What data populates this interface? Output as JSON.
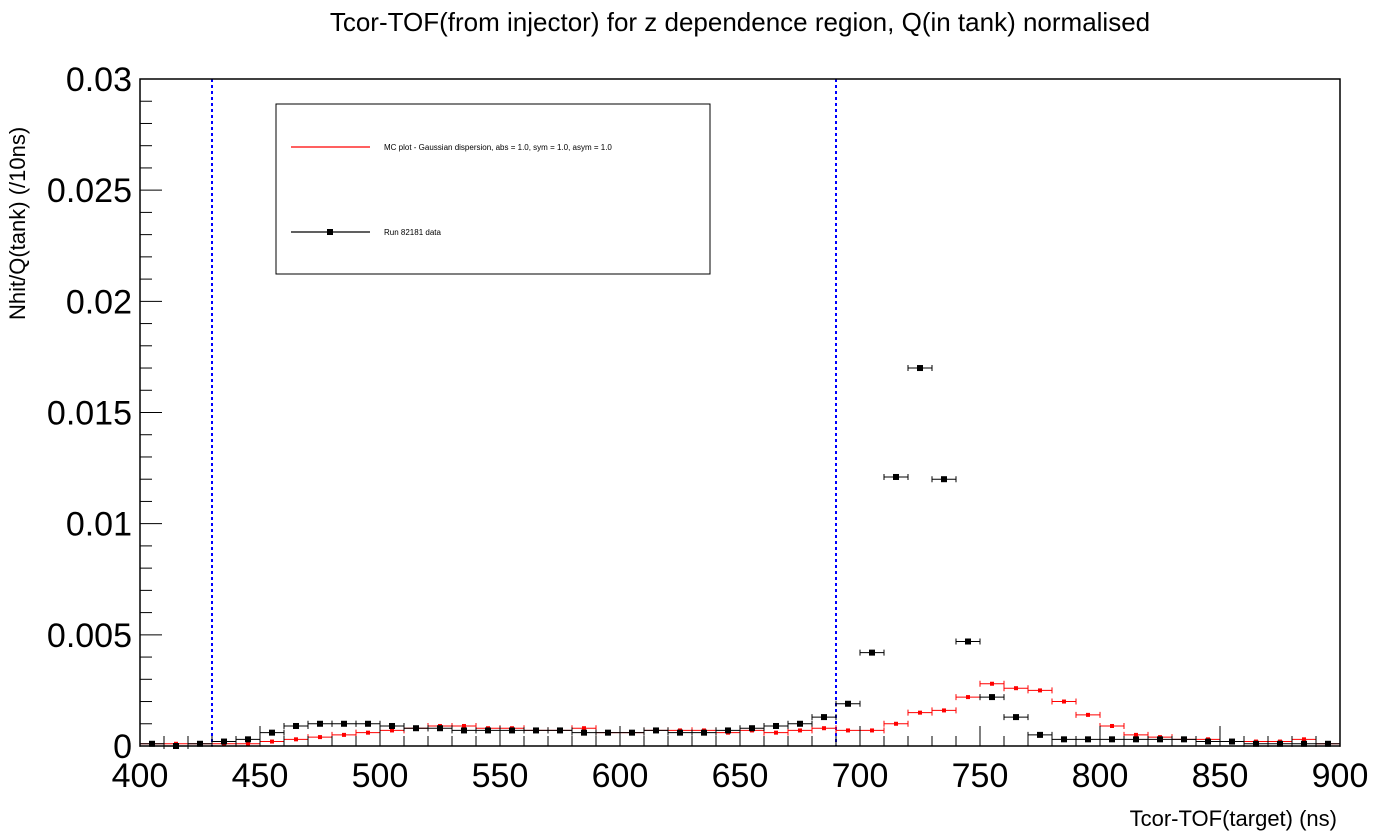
{
  "chart_data": {
    "type": "scatter",
    "title": "Tcor-TOF(from injector) for z dependence region, Q(in tank) normalised",
    "xlabel": "Tcor-TOF(target) (ns)",
    "ylabel": "Nhit/Q(tank) (/10ns)",
    "xlim": [
      400,
      900
    ],
    "ylim": [
      0,
      0.03
    ],
    "x_ticks": [
      400,
      450,
      500,
      550,
      600,
      650,
      700,
      750,
      800,
      850,
      900
    ],
    "x_tick_labels": [
      "400",
      "450",
      "500",
      "550",
      "600",
      "650",
      "700",
      "750",
      "800",
      "850",
      "900"
    ],
    "y_ticks": [
      0,
      0.005,
      0.01,
      0.015,
      0.02,
      0.025,
      0.03
    ],
    "y_tick_labels": [
      "0",
      "0.005",
      "0.01",
      "0.015",
      "0.02",
      "0.025",
      "0.03"
    ],
    "grid": false,
    "legend_position": "top-left",
    "bin_width": 10,
    "vertical_lines": [
      {
        "x": 430,
        "color": "#0000ff",
        "style": "dotted"
      },
      {
        "x": 690,
        "color": "#0000ff",
        "style": "dotted"
      }
    ],
    "series": [
      {
        "name": "MC plot - Gaussian dispersion, abs = 1.0, sym = 1.0, asym = 1.0",
        "color": "#ff0000",
        "marker": "small-square",
        "x": [
          405,
          415,
          425,
          435,
          445,
          455,
          465,
          475,
          485,
          495,
          505,
          515,
          525,
          535,
          545,
          555,
          565,
          575,
          585,
          595,
          605,
          615,
          625,
          635,
          645,
          655,
          665,
          675,
          685,
          695,
          705,
          715,
          725,
          735,
          745,
          755,
          765,
          775,
          785,
          795,
          805,
          815,
          825,
          835,
          845,
          855,
          865,
          875,
          885,
          895
        ],
        "y": [
          0.0001,
          0.0001,
          0.0001,
          0.0001,
          0.0001,
          0.0002,
          0.0003,
          0.0004,
          0.0005,
          0.0006,
          0.0007,
          0.0008,
          0.0009,
          0.0009,
          0.0008,
          0.0008,
          0.0007,
          0.0007,
          0.0008,
          0.0006,
          0.0006,
          0.0007,
          0.0007,
          0.0007,
          0.0006,
          0.0007,
          0.0006,
          0.0007,
          0.0008,
          0.0007,
          0.0007,
          0.001,
          0.0015,
          0.0016,
          0.0022,
          0.0028,
          0.0026,
          0.0025,
          0.002,
          0.0014,
          0.0009,
          0.0005,
          0.0004,
          0.0003,
          0.0003,
          0.0002,
          0.0002,
          0.0002,
          0.0003,
          0.0001
        ]
      },
      {
        "name": "Run 82181 data",
        "color": "#000000",
        "marker": "square",
        "x": [
          405,
          415,
          425,
          435,
          445,
          455,
          465,
          475,
          485,
          495,
          505,
          515,
          525,
          535,
          545,
          555,
          565,
          575,
          585,
          595,
          605,
          615,
          625,
          635,
          645,
          655,
          665,
          675,
          685,
          695,
          705,
          715,
          725,
          735,
          745,
          755,
          765,
          775,
          785,
          795,
          805,
          815,
          825,
          835,
          845,
          855,
          865,
          875,
          885,
          895
        ],
        "y": [
          0.0001,
          0.0,
          0.0001,
          0.0002,
          0.0003,
          0.0006,
          0.0009,
          0.001,
          0.001,
          0.001,
          0.0009,
          0.0008,
          0.0008,
          0.0007,
          0.0007,
          0.0007,
          0.0007,
          0.0007,
          0.0006,
          0.0006,
          0.0006,
          0.0007,
          0.0006,
          0.0006,
          0.0007,
          0.0008,
          0.0009,
          0.001,
          0.0013,
          0.0019,
          0.0042,
          0.0121,
          0.017,
          0.012,
          0.0047,
          0.0022,
          0.0013,
          0.0005,
          0.0003,
          0.0003,
          0.0003,
          0.0003,
          0.0003,
          0.0003,
          0.0002,
          0.0002,
          0.0001,
          0.0001,
          0.0001,
          0.0001
        ]
      }
    ]
  }
}
